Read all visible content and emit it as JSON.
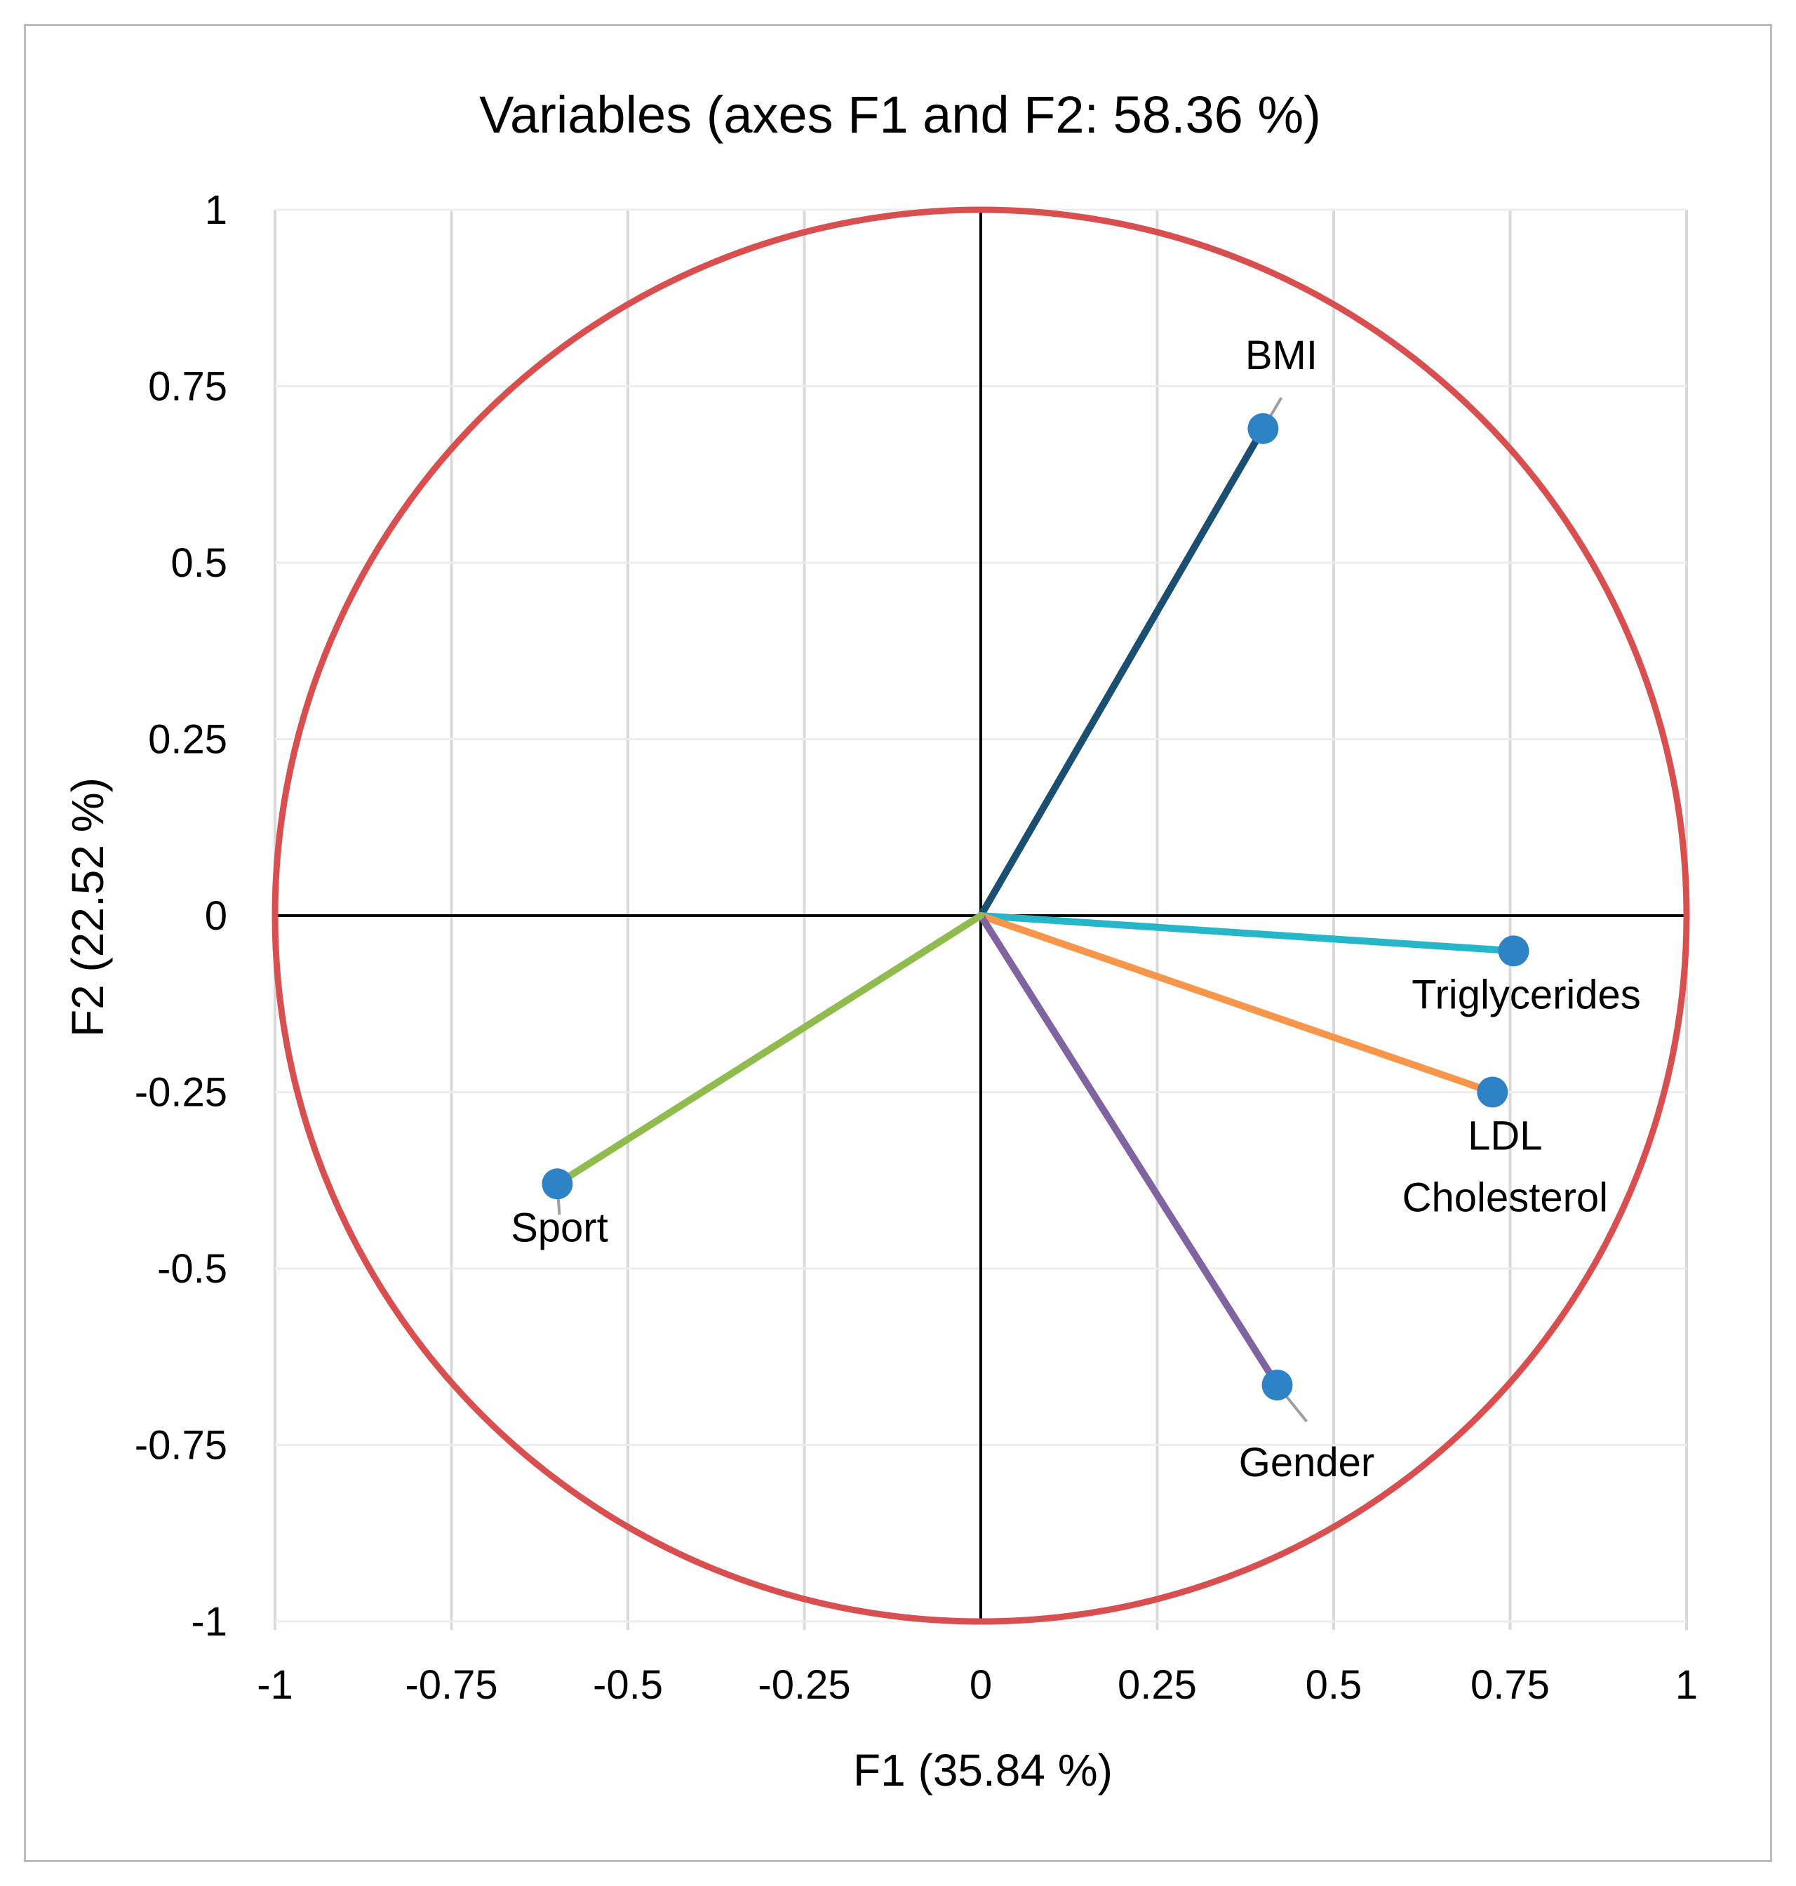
{
  "chart_data": {
    "type": "scatter",
    "subtype": "pca-correlation-circle",
    "title": "Variables (axes F1 and F2: 58.36 %)",
    "xlabel": "F1 (35.84 %)",
    "ylabel": "F2 (22.52 %)",
    "xlim": [
      -1,
      1
    ],
    "ylim": [
      -1,
      1
    ],
    "x_ticks": [
      {
        "value": -1,
        "label": "-1"
      },
      {
        "value": -0.75,
        "label": "-0.75"
      },
      {
        "value": -0.5,
        "label": "-0.5"
      },
      {
        "value": -0.25,
        "label": "-0.25"
      },
      {
        "value": 0,
        "label": "0"
      },
      {
        "value": 0.25,
        "label": "0.25"
      },
      {
        "value": 0.5,
        "label": "0.5"
      },
      {
        "value": 0.75,
        "label": "0.75"
      },
      {
        "value": 1,
        "label": "1"
      }
    ],
    "y_ticks": [
      {
        "value": 1,
        "label": "1"
      },
      {
        "value": 0.75,
        "label": "0.75"
      },
      {
        "value": 0.5,
        "label": "0.5"
      },
      {
        "value": 0.25,
        "label": "0.25"
      },
      {
        "value": 0,
        "label": "0"
      },
      {
        "value": -0.25,
        "label": "-0.25"
      },
      {
        "value": -0.5,
        "label": "-0.5"
      },
      {
        "value": -0.75,
        "label": "-0.75"
      },
      {
        "value": -1,
        "label": "-1"
      }
    ],
    "grid": true,
    "unit_circle": {
      "radius": 1,
      "color": "#d94f4f"
    },
    "variables": [
      {
        "name": "BMI",
        "label_lines": [
          "BMI"
        ],
        "x": 0.4,
        "y": 0.69,
        "color": "#1b4f72",
        "label_position": "above"
      },
      {
        "name": "Triglycerides",
        "label_lines": [
          "Triglycerides"
        ],
        "x": 0.755,
        "y": -0.05,
        "color": "#25b6c9",
        "label_position": "below"
      },
      {
        "name": "LDL Cholesterol",
        "label_lines": [
          "LDL",
          "Cholesterol"
        ],
        "x": 0.725,
        "y": -0.25,
        "color": "#f7964b",
        "label_position": "below"
      },
      {
        "name": "Gender",
        "label_lines": [
          "Gender"
        ],
        "x": 0.42,
        "y": -0.665,
        "color": "#8064a2",
        "label_position": "below-right"
      },
      {
        "name": "Sport",
        "label_lines": [
          "Sport"
        ],
        "x": -0.6,
        "y": -0.38,
        "color": "#8fbc4d",
        "label_position": "below"
      }
    ],
    "marker_color": "#2e82c6"
  }
}
